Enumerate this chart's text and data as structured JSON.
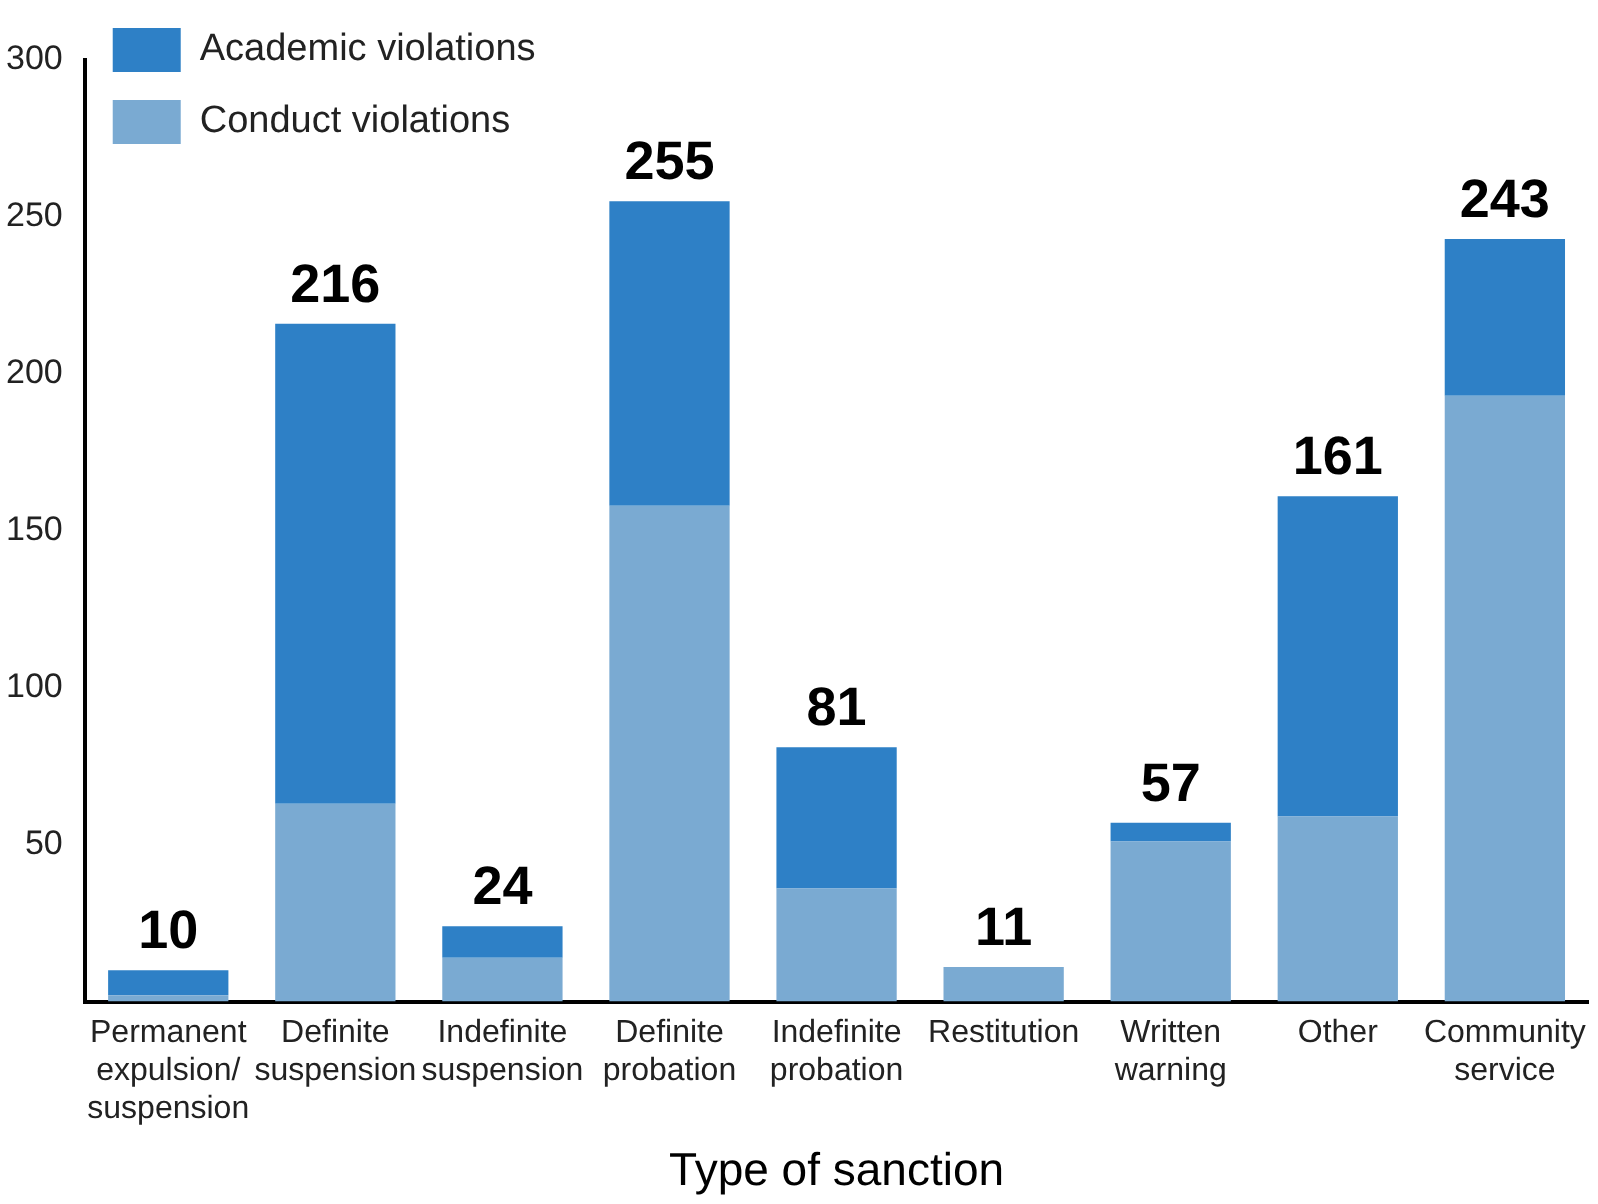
{
  "chart_data": {
    "type": "bar",
    "xlabel": "Type of sanction",
    "categories": [
      "Permanent expulsion/ suspension",
      "Definite suspension",
      "Indefinite suspension",
      "Definite probation",
      "Indefinite probation",
      "Restitution",
      "Written warning",
      "Other",
      "Community service"
    ],
    "stacked": true,
    "series": [
      {
        "name": "Conduct violations",
        "color": "#7aaad2",
        "values": [
          2,
          63,
          14,
          158,
          36,
          11,
          51,
          59,
          193
        ]
      },
      {
        "name": "Academic violations",
        "color": "#2e80c6",
        "values": [
          8,
          153,
          10,
          97,
          45,
          0,
          6,
          102,
          50
        ]
      }
    ],
    "totals": [
      "10",
      "216",
      "24",
      "255",
      "81",
      "11",
      "57",
      "161",
      "243"
    ],
    "ylim": [
      0,
      300
    ],
    "yticks": [
      50,
      100,
      150,
      200,
      250,
      300
    ],
    "grid": false,
    "legend": "top left"
  }
}
